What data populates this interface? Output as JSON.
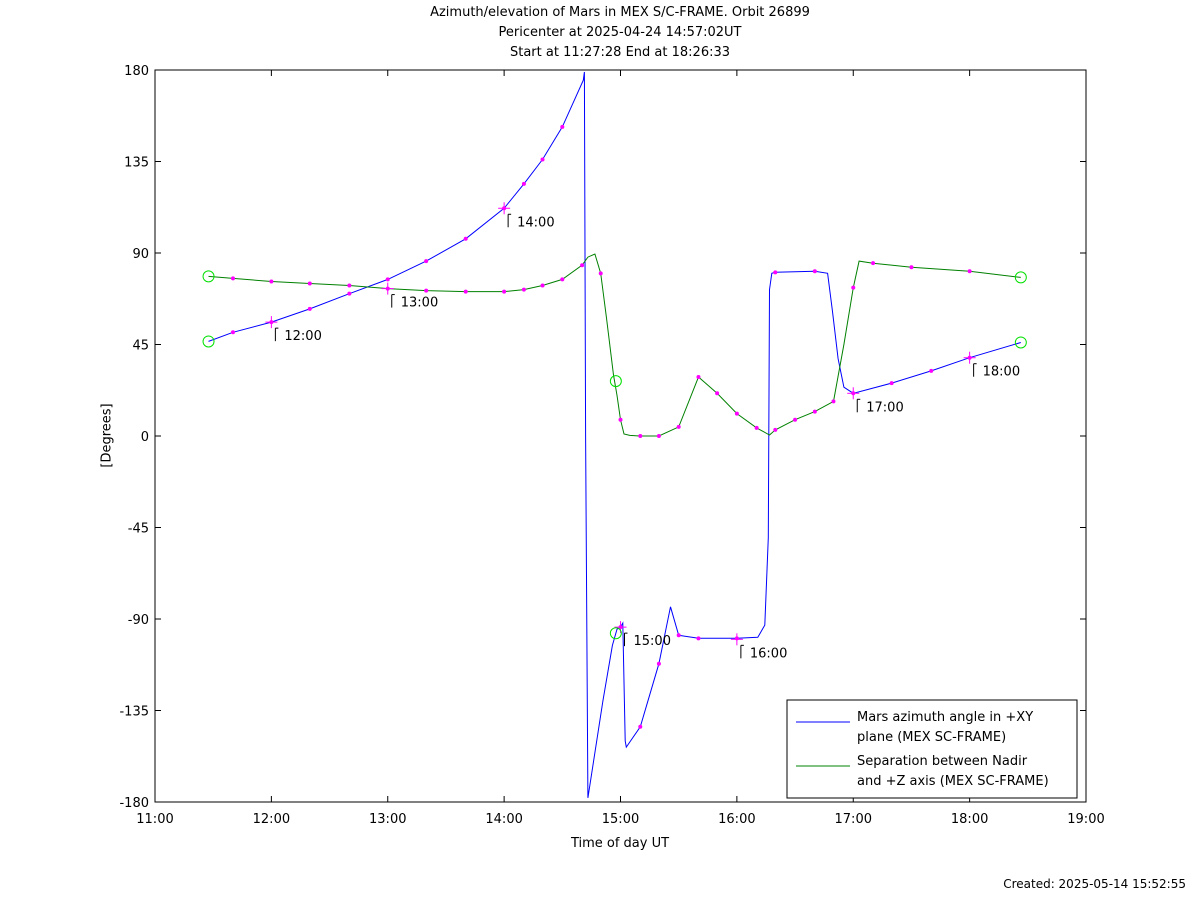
{
  "chart_data": {
    "type": "line",
    "title_lines": [
      "Azimuth/elevation of Mars in MEX S/C-FRAME.  Orbit 26899",
      "Pericenter at 2025-04-24 14:57:02UT",
      "Start at 11:27:28 End at 18:26:33"
    ],
    "xlabel": "Time of day UT",
    "ylabel": "[Degrees]",
    "created": "Created: 2025-05-14 15:52:55",
    "xlim": [
      11.0,
      19.0
    ],
    "ylim": [
      -180,
      180
    ],
    "x_ticks": [
      11,
      12,
      13,
      14,
      15,
      16,
      17,
      18,
      19
    ],
    "x_tick_labels": [
      "11:00",
      "12:00",
      "13:00",
      "14:00",
      "15:00",
      "16:00",
      "17:00",
      "18:00",
      "19:00"
    ],
    "y_ticks": [
      180,
      135,
      90,
      45,
      0,
      -45,
      -90,
      -135,
      -180
    ],
    "y_tick_labels": [
      "180",
      "135",
      "90",
      "45",
      "0",
      "-45",
      "-90",
      "-135",
      "-180"
    ],
    "legend_position": "bottom-right",
    "series": [
      {
        "name": "Mars azimuth angle in +XY\nplane (MEX SC-FRAME)",
        "legend_lines": [
          "Mars azimuth angle in +XY",
          "plane (MEX SC-FRAME)"
        ],
        "color": "#0000ff",
        "x": [
          11.46,
          11.67,
          12.0,
          12.33,
          12.67,
          13.0,
          13.33,
          13.67,
          14.0,
          14.17,
          14.33,
          14.5,
          14.68,
          14.69,
          14.7,
          14.72,
          14.85,
          14.93,
          14.97,
          15.0,
          15.02,
          15.04,
          15.05,
          15.17,
          15.33,
          15.43,
          15.5,
          15.67,
          16.0,
          16.18,
          16.24,
          16.27,
          16.28,
          16.3,
          16.33,
          16.67,
          16.78,
          16.82,
          16.87,
          16.92,
          17.0,
          17.33,
          17.67,
          18.0,
          18.44
        ],
        "y": [
          46.5,
          51,
          56,
          62.5,
          70,
          77,
          86,
          97,
          112,
          124,
          136,
          152,
          175,
          179,
          0,
          -178,
          -130,
          -103,
          -95,
          -94,
          -92,
          -150,
          -153,
          -143,
          -112,
          -84,
          -98,
          -99.5,
          -99.5,
          -99,
          -93,
          -50,
          72,
          80,
          80.5,
          81,
          80,
          62,
          38,
          24,
          21,
          26,
          32,
          38.5,
          46
        ]
      },
      {
        "name": "Separation between Nadir\nand +Z axis (MEX SC-FRAME)",
        "legend_lines": [
          "Separation between Nadir",
          "and +Z axis (MEX SC-FRAME)"
        ],
        "color": "#008000",
        "x": [
          11.46,
          11.67,
          12.0,
          12.33,
          12.67,
          13.0,
          13.33,
          13.67,
          14.0,
          14.17,
          14.33,
          14.5,
          14.67,
          14.72,
          14.78,
          14.83,
          14.88,
          14.94,
          14.97,
          15.0,
          15.03,
          15.08,
          15.17,
          15.33,
          15.5,
          15.67,
          15.83,
          16.0,
          16.17,
          16.28,
          16.33,
          16.5,
          16.67,
          16.83,
          16.92,
          17.0,
          17.05,
          17.17,
          17.5,
          18.0,
          18.44
        ],
        "y": [
          78.5,
          77.5,
          76,
          75,
          74,
          72.5,
          71.5,
          71,
          71,
          72,
          74,
          77,
          84,
          88,
          89.5,
          80,
          58,
          30,
          20,
          8,
          1,
          0.3,
          0,
          0,
          4.5,
          29,
          21,
          11,
          4,
          0.5,
          3,
          8,
          12,
          17,
          45,
          73,
          86,
          85,
          83,
          81,
          78
        ]
      }
    ],
    "time_tags": [
      {
        "label": "12:00",
        "x": 12.0,
        "y": 56
      },
      {
        "label": "13:00",
        "x": 13.0,
        "y": 72.5
      },
      {
        "label": "14:00",
        "x": 14.0,
        "y": 112
      },
      {
        "label": "15:00",
        "x": 15.0,
        "y": -94
      },
      {
        "label": "16:00",
        "x": 16.0,
        "y": -100
      },
      {
        "label": "17:00",
        "x": 17.0,
        "y": 21
      },
      {
        "label": "18:00",
        "x": 18.0,
        "y": 38.5
      }
    ],
    "event_markers": [
      {
        "x": 11.46,
        "y": 78.5
      },
      {
        "x": 11.46,
        "y": 46.5
      },
      {
        "x": 14.96,
        "y": 27
      },
      {
        "x": 14.96,
        "y": -97
      },
      {
        "x": 18.44,
        "y": 78
      },
      {
        "x": 18.44,
        "y": 46
      }
    ]
  }
}
